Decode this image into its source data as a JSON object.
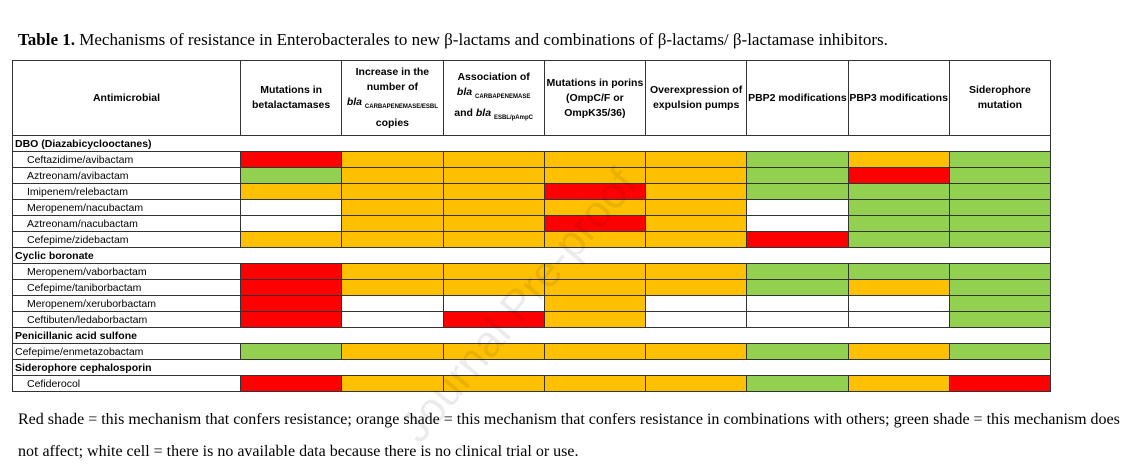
{
  "caption": {
    "label": "Table 1.",
    "text": " Mechanisms of resistance in Enterobacterales to new β-lactams and combinations of β-lactams/ β-lactamase inhibitors."
  },
  "headers": {
    "antimicrobial": "Antimicrobial",
    "mutations_betalactamases": "Mutations in betalactamases",
    "increase_pre": "Increase in the number of",
    "increase_bla": "bla",
    "increase_sub": "CARBAPENEMASE/ESBL",
    "increase_post": "copies",
    "assoc_pre": "Association of",
    "assoc_bla1": "bla",
    "assoc_sub1": "CARBAPENEMASE",
    "assoc_and": "and ",
    "assoc_bla2": "bla",
    "assoc_sub2": "ESBL/pAmpC",
    "porins": "Mutations in porins (OmpC/F or OmpK35/36)",
    "pumps": "Overexpression of expulsion pumps",
    "pbp2": "PBP2 modifications",
    "pbp3": "PBP3 modifications",
    "siderophore": "Siderophore mutation"
  },
  "legend_colors": {
    "R": "#ff0000",
    "O": "#ffc000",
    "G": "#92d050",
    "W": "#ffffff"
  },
  "groups": [
    {
      "name": "DBO (Diazabicyclooctanes)",
      "rows": [
        {
          "name": "Ceftazidime/avibactam",
          "cells": [
            "R",
            "O",
            "O",
            "O",
            "O",
            "G",
            "O",
            "G"
          ]
        },
        {
          "name": "Aztreonam/avibactam",
          "cells": [
            "G",
            "O",
            "O",
            "O",
            "O",
            "G",
            "R",
            "G"
          ]
        },
        {
          "name": "Imipenem/relebactam",
          "cells": [
            "O",
            "O",
            "O",
            "R",
            "O",
            "G",
            "G",
            "G"
          ]
        },
        {
          "name": "Meropenem/nacubactam",
          "cells": [
            "W",
            "O",
            "O",
            "O",
            "O",
            "W",
            "G",
            "G"
          ]
        },
        {
          "name": "Aztreonam/nacubactam",
          "cells": [
            "W",
            "O",
            "O",
            "R",
            "O",
            "W",
            "G",
            "G"
          ]
        },
        {
          "name": "Cefepime/zidebactam",
          "cells": [
            "O",
            "O",
            "O",
            "O",
            "O",
            "R",
            "G",
            "G"
          ]
        }
      ]
    },
    {
      "name": "Cyclic boronate",
      "rows": [
        {
          "name": "Meropenem/vaborbactam",
          "cells": [
            "R",
            "O",
            "O",
            "O",
            "O",
            "G",
            "G",
            "G"
          ]
        },
        {
          "name": "Cefepime/taniborbactam",
          "cells": [
            "R",
            "O",
            "O",
            "O",
            "O",
            "G",
            "O",
            "G"
          ]
        },
        {
          "name": "Meropenem/xeruborbactam",
          "cells": [
            "R",
            "W",
            "W",
            "O",
            "W",
            "W",
            "W",
            "G"
          ]
        },
        {
          "name": "Ceftibuten/ledaborbactam",
          "cells": [
            "R",
            "W",
            "R",
            "O",
            "W",
            "W",
            "W",
            "G"
          ]
        }
      ]
    },
    {
      "name": "Penicillanic acid sulfone",
      "flush": true,
      "rows": [
        {
          "name": "Cefepime/enmetazobactam",
          "cells": [
            "G",
            "O",
            "O",
            "O",
            "O",
            "G",
            "O",
            "G"
          ]
        }
      ]
    },
    {
      "name": "Siderophore cephalosporin",
      "rows": [
        {
          "name": "Cefiderocol",
          "cells": [
            "R",
            "O",
            "O",
            "O",
            "O",
            "G",
            "O",
            "R"
          ]
        }
      ]
    }
  ],
  "footnote": "Red shade = this mechanism that confers resistance; orange shade = this mechanism that confers resistance in combinations with others; green shade = this mechanism does not affect; white cell = there is no available data because there is no clinical trial or use.",
  "watermark": "Journal Pre-proof"
}
